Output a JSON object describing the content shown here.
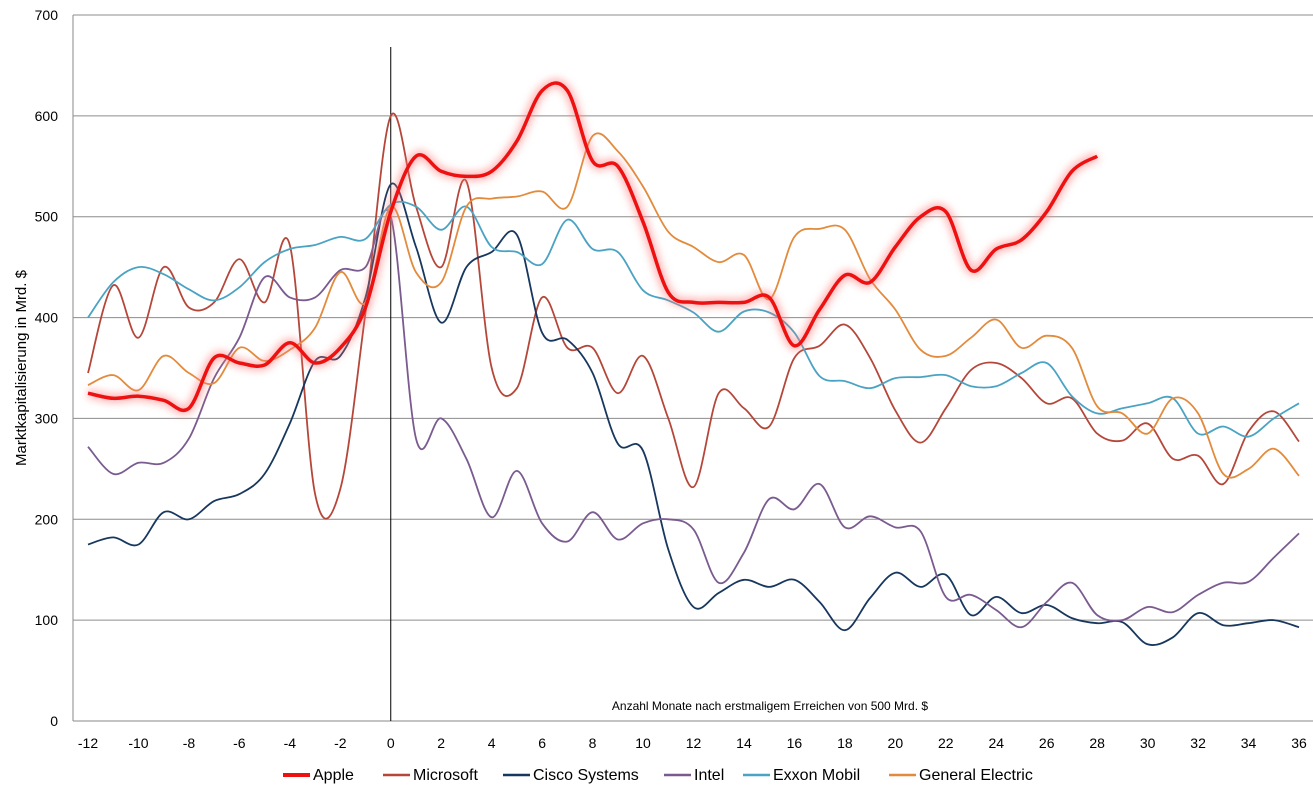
{
  "chart_data": {
    "type": "line",
    "title": "",
    "xlabel": "",
    "ylabel": "Marktkapitalisierung in Mrd. $",
    "annotation": "Anzahl Monate nach erstmaligem Erreichen von 500 Mrd. $",
    "xlim": [
      -12,
      36
    ],
    "ylim": [
      0,
      700
    ],
    "x_ticks": [
      -12,
      -10,
      -8,
      -6,
      -4,
      -2,
      0,
      2,
      4,
      6,
      8,
      10,
      12,
      14,
      16,
      18,
      20,
      22,
      24,
      26,
      28,
      30,
      32,
      34,
      36
    ],
    "y_ticks": [
      0,
      100,
      200,
      300,
      400,
      500,
      600,
      700
    ],
    "grid": "horizontal",
    "vertical_marker_x": 0,
    "legend_position": "bottom",
    "series": [
      {
        "name": "Apple",
        "color": "#ee1111",
        "emphasis": true,
        "x": [
          -12,
          -11,
          -10,
          -9,
          -8,
          -7,
          -6,
          -5,
          -4,
          -3,
          -2,
          -1,
          0,
          1,
          2,
          3,
          4,
          5,
          6,
          7,
          8,
          9,
          10,
          11,
          12,
          13,
          14,
          15,
          16,
          17,
          18,
          19,
          20,
          21,
          22,
          23,
          24,
          25,
          26,
          27,
          28
        ],
        "values": [
          325,
          320,
          322,
          318,
          310,
          360,
          355,
          353,
          375,
          355,
          370,
          410,
          505,
          560,
          545,
          540,
          545,
          575,
          625,
          625,
          555,
          550,
          495,
          425,
          415,
          415,
          415,
          420,
          372,
          408,
          442,
          435,
          470,
          500,
          505,
          447,
          468,
          477,
          505,
          545,
          560
        ]
      },
      {
        "name": "Microsoft",
        "color": "#b5473a",
        "x": [
          -12,
          -11,
          -10,
          -9,
          -8,
          -7,
          -6,
          -5,
          -4,
          -3,
          -2,
          -1,
          0,
          1,
          2,
          3,
          4,
          5,
          6,
          7,
          8,
          9,
          10,
          11,
          12,
          13,
          14,
          15,
          16,
          17,
          18,
          19,
          20,
          21,
          22,
          23,
          24,
          25,
          26,
          27,
          28,
          29,
          30,
          31,
          32,
          33,
          34,
          35,
          36
        ],
        "values": [
          345,
          432,
          380,
          450,
          410,
          415,
          458,
          415,
          472,
          225,
          230,
          405,
          600,
          510,
          450,
          535,
          350,
          330,
          420,
          370,
          370,
          325,
          362,
          300,
          232,
          325,
          310,
          292,
          360,
          372,
          393,
          360,
          308,
          276,
          310,
          348,
          355,
          340,
          315,
          320,
          285,
          278,
          295,
          260,
          263,
          235,
          287,
          307,
          277
        ]
      },
      {
        "name": "Cisco Systems",
        "color": "#17375e",
        "x": [
          -12,
          -11,
          -10,
          -9,
          -8,
          -7,
          -6,
          -5,
          -4,
          -3,
          -2,
          -1,
          0,
          1,
          2,
          3,
          4,
          5,
          6,
          7,
          8,
          9,
          10,
          11,
          12,
          13,
          14,
          15,
          16,
          17,
          18,
          19,
          20,
          21,
          22,
          23,
          24,
          25,
          26,
          27,
          28,
          29,
          30,
          31,
          32,
          33,
          34,
          35,
          36
        ],
        "values": [
          175,
          182,
          175,
          207,
          200,
          218,
          225,
          245,
          295,
          357,
          362,
          420,
          532,
          470,
          395,
          450,
          465,
          482,
          385,
          378,
          345,
          275,
          268,
          170,
          113,
          127,
          140,
          133,
          140,
          118,
          90,
          122,
          147,
          133,
          145,
          105,
          123,
          107,
          115,
          102,
          97,
          98,
          76,
          83,
          107,
          95,
          97,
          100,
          93
        ]
      },
      {
        "name": "Intel",
        "color": "#7a5b8f",
        "x": [
          -12,
          -11,
          -10,
          -9,
          -8,
          -7,
          -6,
          -5,
          -4,
          -3,
          -2,
          -1,
          0,
          1,
          2,
          3,
          4,
          5,
          6,
          7,
          8,
          9,
          10,
          11,
          12,
          13,
          14,
          15,
          16,
          17,
          18,
          19,
          20,
          21,
          22,
          23,
          24,
          25,
          26,
          27,
          28,
          29,
          30,
          31,
          32,
          33,
          34,
          35,
          36
        ],
        "values": [
          272,
          245,
          256,
          256,
          280,
          340,
          380,
          440,
          420,
          420,
          447,
          450,
          500,
          280,
          300,
          260,
          202,
          248,
          196,
          178,
          207,
          180,
          196,
          200,
          190,
          137,
          167,
          220,
          210,
          235,
          192,
          203,
          192,
          188,
          123,
          125,
          110,
          93,
          118,
          137,
          105,
          100,
          113,
          108,
          125,
          137,
          138,
          162,
          186
        ]
      },
      {
        "name": "Exxon Mobil",
        "color": "#4aa3c3",
        "x": [
          -12,
          -11,
          -10,
          -9,
          -8,
          -7,
          -6,
          -5,
          -4,
          -3,
          -2,
          -1,
          0,
          1,
          2,
          3,
          4,
          5,
          6,
          7,
          8,
          9,
          10,
          11,
          12,
          13,
          14,
          15,
          16,
          17,
          18,
          19,
          20,
          21,
          22,
          23,
          24,
          25,
          26,
          27,
          28,
          29,
          30,
          31,
          32,
          33,
          34,
          35,
          36
        ],
        "values": [
          400,
          435,
          450,
          443,
          428,
          417,
          430,
          455,
          468,
          472,
          480,
          478,
          512,
          510,
          487,
          510,
          470,
          465,
          453,
          497,
          468,
          465,
          427,
          417,
          405,
          386,
          406,
          405,
          385,
          342,
          337,
          330,
          340,
          341,
          343,
          332,
          332,
          345,
          355,
          322,
          305,
          310,
          315,
          320,
          285,
          292,
          282,
          300,
          315
        ]
      },
      {
        "name": "General Electric",
        "color": "#e38b3c",
        "x": [
          -12,
          -11,
          -10,
          -9,
          -8,
          -7,
          -6,
          -5,
          -4,
          -3,
          -2,
          -1,
          0,
          1,
          2,
          3,
          4,
          5,
          6,
          7,
          8,
          9,
          10,
          11,
          12,
          13,
          14,
          15,
          16,
          17,
          18,
          19,
          20,
          21,
          22,
          23,
          24,
          25,
          26,
          27,
          28,
          29,
          30,
          31,
          32,
          33,
          34,
          35,
          36
        ],
        "values": [
          333,
          343,
          328,
          362,
          345,
          335,
          370,
          357,
          368,
          390,
          445,
          415,
          510,
          445,
          435,
          510,
          518,
          520,
          525,
          510,
          580,
          565,
          530,
          485,
          470,
          455,
          462,
          418,
          480,
          488,
          487,
          438,
          408,
          368,
          362,
          380,
          398,
          370,
          382,
          370,
          312,
          305,
          285,
          320,
          305,
          245,
          250,
          270,
          243
        ]
      }
    ]
  }
}
